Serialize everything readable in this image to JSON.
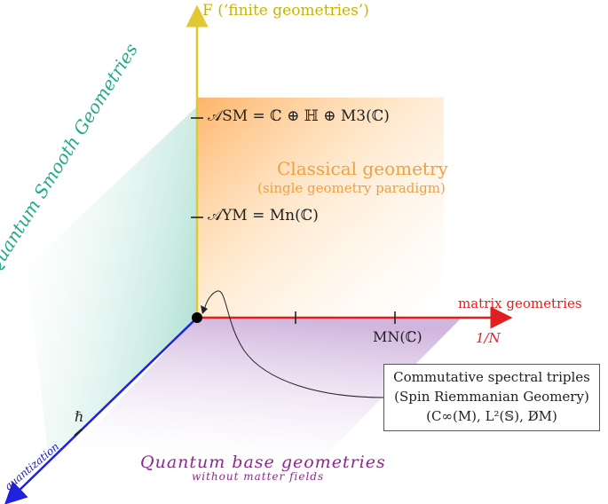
{
  "colors": {
    "f_axis": "#e0c830",
    "matrix_axis": "#e02020",
    "quantization_axis": "#2020e0",
    "classical": "#f0a040",
    "quantum_smooth": "#22aa88",
    "quantum_base": "#8a2a8a"
  },
  "axes": {
    "f_label": "F (‘finite geometries’)",
    "matrix_label": "matrix geometries",
    "inv_n_label": "1/N",
    "quantization_label": "quantization"
  },
  "ticks": {
    "a_sm": "𝒜SM = ℂ ⊕ ℍ ⊕ M3(ℂ)",
    "a_ym": "𝒜YM = Mn(ℂ)",
    "mn": "MN(ℂ)",
    "hbar": "ℏ"
  },
  "regions": {
    "classical_title": "Classical geometry",
    "classical_sub": "(single geometry paradigm)",
    "quantum_smooth": "Quantum Smooth Geometries",
    "quantum_base_title": "Quantum base geometries",
    "quantum_base_sub": "without matter fields"
  },
  "callout": {
    "line1": "Commutative spectral triples",
    "line2": "(Spin Riemmanian Geomery)",
    "line3": "(C∞(M), L²(𝕊), D̸M)"
  }
}
